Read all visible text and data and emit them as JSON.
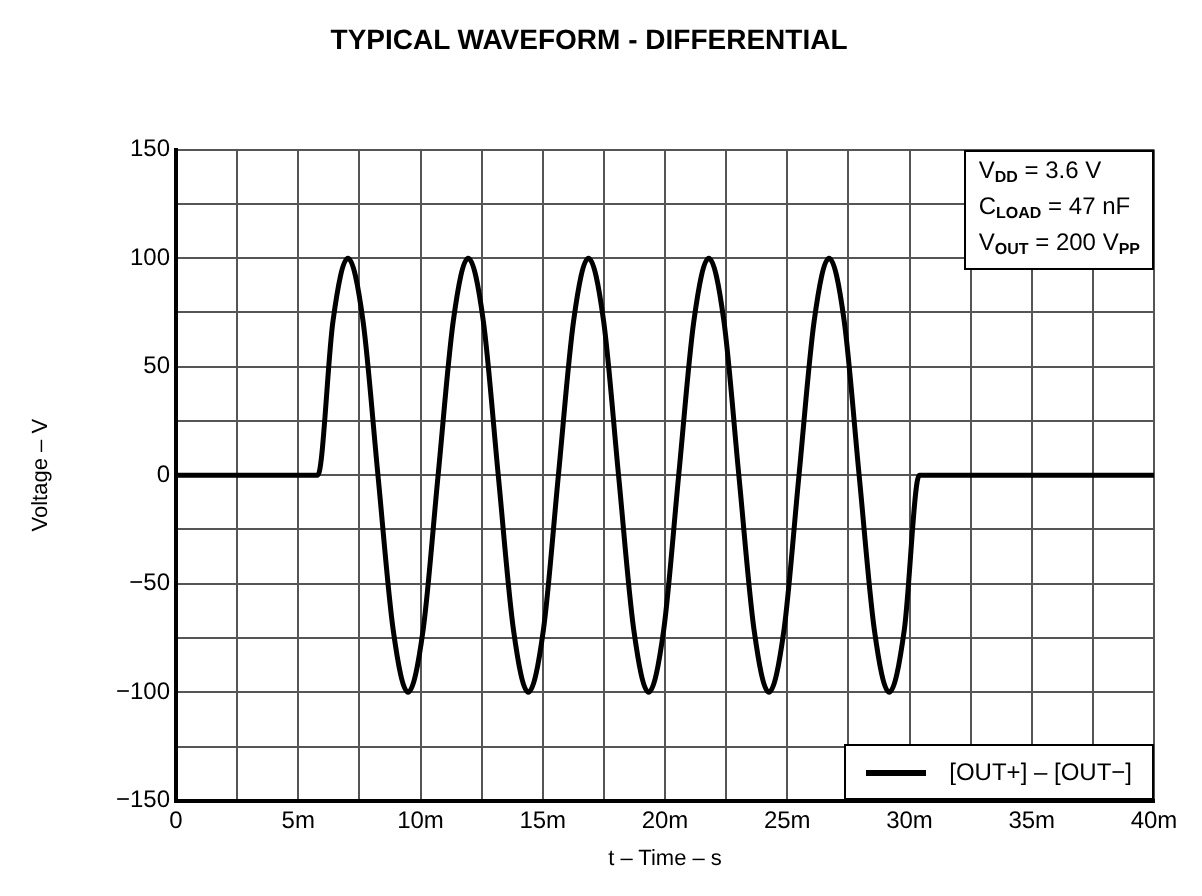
{
  "chart_data": {
    "type": "line",
    "title": "TYPICAL WAVEFORM - DIFFERENTIAL",
    "xlabel": "t – Time – s",
    "ylabel": "Voltage – V",
    "annotations": [
      "V$_{DD}$ = 3.6 V",
      "C$_{LOAD}$ = 47 nF",
      "V$_{OUT}$ = 200 V$_{PP}$"
    ],
    "xlim": [
      0,
      40
    ],
    "xticks": [
      0,
      {
        "value": 2.5,
        "label": null
      },
      {
        "value": 5,
        "label": "5m"
      },
      {
        "value": 7.5,
        "label": null
      },
      {
        "value": 10,
        "label": "10m"
      },
      {
        "value": 12.5,
        "label": null
      },
      {
        "value": 15,
        "label": "15m"
      },
      {
        "value": 17.5,
        "label": null
      },
      {
        "value": 20,
        "label": "20m"
      },
      {
        "value": 22.5,
        "label": null
      },
      {
        "value": 25,
        "label": "25m"
      },
      {
        "value": 27.5,
        "label": null
      },
      {
        "value": 30,
        "label": "30m"
      },
      {
        "value": 32.5,
        "label": null
      },
      {
        "value": 35,
        "label": "35m"
      },
      {
        "value": 37.5,
        "label": null
      },
      {
        "value": 40,
        "label": "40m"
      }
    ],
    "ylim": [
      -150,
      150
    ],
    "yticks": [
      {
        "value": -150,
        "label": "−150"
      },
      {
        "value": -125,
        "label": null
      },
      {
        "value": -100,
        "label": "−100"
      },
      {
        "value": -75,
        "label": null
      },
      {
        "value": -50,
        "label": "−50"
      },
      {
        "value": -25,
        "label": null
      },
      0,
      {
        "value": 25,
        "label": null
      },
      50,
      {
        "value": 75,
        "label": null
      },
      100,
      {
        "value": 125,
        "label": null
      },
      150
    ],
    "grid": true,
    "legend": "bottom right",
    "marker": "none",
    "line_style": "solid",
    "series": [
      {
        "name": "[OUT+] – [OUT−]",
        "color": "#000000",
        "x": [
          0,
          5.8,
          6.42,
          7.03,
          7.65,
          8.26,
          8.88,
          9.49,
          10.11,
          10.72,
          11.34,
          11.95,
          12.57,
          13.18,
          13.8,
          14.41,
          15.03,
          15.64,
          16.26,
          16.87,
          17.49,
          18.1,
          18.72,
          19.33,
          19.95,
          20.56,
          21.18,
          21.79,
          22.41,
          23.02,
          23.64,
          24.25,
          24.87,
          25.48,
          26.1,
          26.71,
          27.33,
          27.94,
          28.56,
          29.17,
          29.79,
          30.4,
          40
        ],
        "values": [
          0,
          0,
          71,
          100,
          71,
          0,
          -71,
          -100,
          -71,
          0,
          71,
          100,
          71,
          0,
          -71,
          -100,
          -71,
          0,
          71,
          100,
          71,
          0,
          -71,
          -100,
          -71,
          0,
          71,
          100,
          71,
          0,
          -71,
          -100,
          -71,
          0,
          71,
          100,
          71,
          0,
          -71,
          -100,
          -71,
          0,
          0
        ]
      }
    ]
  }
}
